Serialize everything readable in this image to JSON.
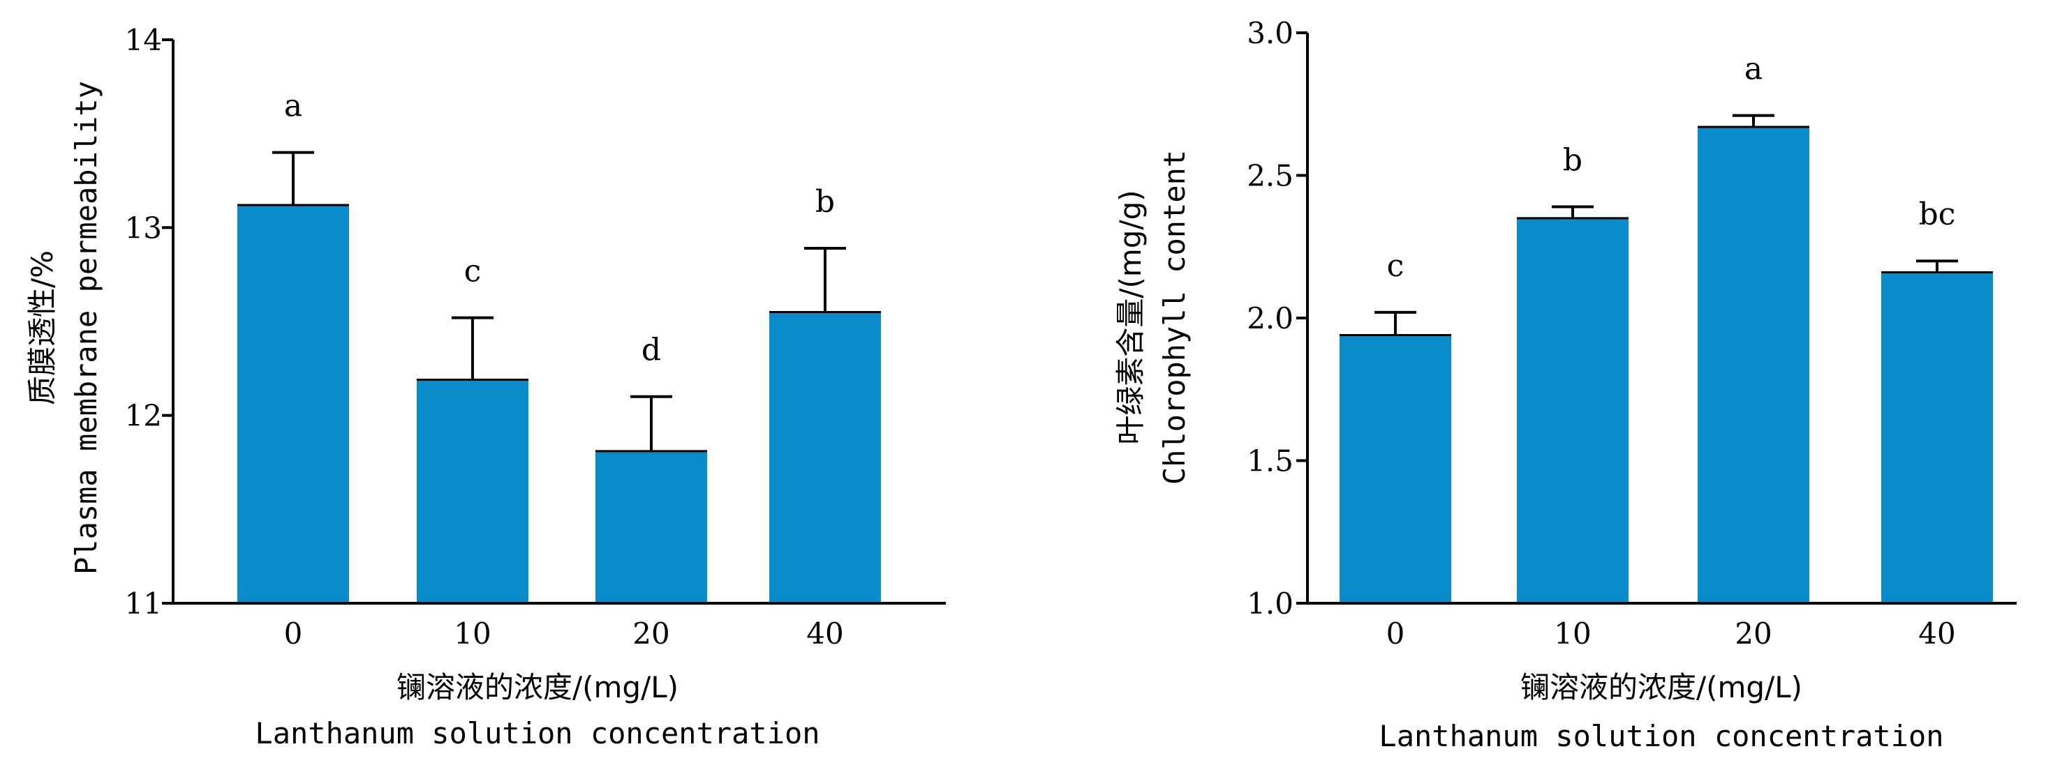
{
  "colors": {
    "bar": "#0a8ccc",
    "axis": "#000000"
  },
  "chart_data": [
    {
      "type": "bar",
      "categories": [
        "0",
        "10",
        "20",
        "40"
      ],
      "values": [
        13.12,
        12.19,
        11.81,
        12.55
      ],
      "errors": [
        0.28,
        0.33,
        0.29,
        0.34
      ],
      "significance": [
        "a",
        "c",
        "d",
        "b"
      ],
      "ylim": [
        11,
        14
      ],
      "yticks": [
        "11",
        "12",
        "13",
        "14"
      ],
      "ylabel_cn": "质膜透性/%",
      "ylabel_en": "Plasma membrane permeability",
      "xlabel_cn": "镧溶液的浓度/(mg/L)",
      "xlabel_en": "Lanthanum solution concentration"
    },
    {
      "type": "bar",
      "categories": [
        "0",
        "10",
        "20",
        "40"
      ],
      "values": [
        1.94,
        2.35,
        2.67,
        2.16
      ],
      "errors": [
        0.08,
        0.04,
        0.04,
        0.04
      ],
      "significance": [
        "c",
        "b",
        "a",
        "bc"
      ],
      "ylim": [
        1.0,
        3.0
      ],
      "yticks": [
        "1.0",
        "1.5",
        "2.0",
        "2.5",
        "3.0"
      ],
      "ylabel_cn": "叶绿素含量/(mg/g)",
      "ylabel_en": "Chlorophyll content",
      "xlabel_cn": "镧溶液的浓度/(mg/L)",
      "xlabel_en": "Lanthanum solution concentration"
    }
  ]
}
